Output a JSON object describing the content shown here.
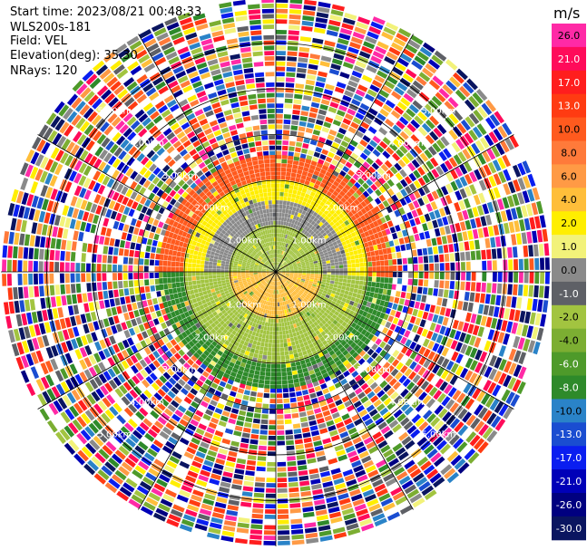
{
  "header": {
    "start_time": "Start time: 2023/08/21 00:48:33",
    "station": "WLS200s-181",
    "field": "Field: VEL",
    "elevation": "Elevation(deg): 35.30",
    "nrays": "NRays: 120"
  },
  "colorbar": {
    "unit": "m/s",
    "ticks": [
      "26.0",
      "21.0",
      "17.0",
      "13.0",
      "10.0",
      "8.0",
      "6.0",
      "4.0",
      "2.0",
      "1.0",
      "0.0",
      "-1.0",
      "-2.0",
      "-4.0",
      "-6.0",
      "-8.0",
      "-10.0",
      "-13.0",
      "-17.0",
      "-21.0",
      "-26.0",
      "-30.0"
    ],
    "colors": [
      "#ff2aa6",
      "#ff0b5a",
      "#ff1e1e",
      "#ff3b12",
      "#ff5a1e",
      "#ff7a3a",
      "#ff9a45",
      "#ffbe3a",
      "#ffee00",
      "#f2f27a",
      "#8a8a8a",
      "#5e6066",
      "#a2c440",
      "#7cae32",
      "#4e9a2a",
      "#2e8a2a",
      "#2a83c8",
      "#1a4dd1",
      "#0a1ef0",
      "#0000b8",
      "#000080",
      "#0a1560"
    ]
  },
  "chart_data": {
    "type": "polar",
    "field": "VEL",
    "units": "m/s",
    "nrays": 120,
    "range_rings_km": [
      1.0,
      2.0,
      3.0,
      4.0,
      5.0
    ],
    "ring_labels": [
      "1.00km",
      "2.00km",
      "3.00km",
      "4.00km",
      "5.00km"
    ],
    "spoke_angles_deg": [
      0,
      30,
      60,
      90,
      120,
      150,
      180,
      210,
      240,
      270,
      300,
      330
    ],
    "valid_data_radius_km": 2.55,
    "max_range_km": 6.0,
    "velocity_bands_by_range": [
      {
        "sector": "north",
        "range_km": [
          0.0,
          1.0
        ],
        "velocity_ms": -2.0
      },
      {
        "sector": "north",
        "range_km": [
          1.0,
          1.5
        ],
        "velocity_ms": 0.0
      },
      {
        "sector": "north",
        "range_km": [
          1.5,
          2.0
        ],
        "velocity_ms": 2.0
      },
      {
        "sector": "north",
        "range_km": [
          2.0,
          2.55
        ],
        "velocity_ms": 10.0
      },
      {
        "sector": "south",
        "range_km": [
          0.0,
          1.0
        ],
        "velocity_ms": 4.0
      },
      {
        "sector": "south",
        "range_km": [
          1.0,
          2.0
        ],
        "velocity_ms": -2.0
      },
      {
        "sector": "south",
        "range_km": [
          2.0,
          2.55
        ],
        "velocity_ms": -8.0
      }
    ]
  }
}
